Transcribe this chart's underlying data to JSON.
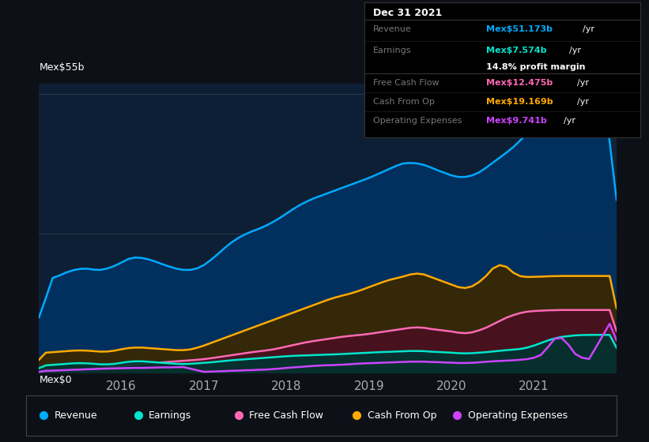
{
  "bg_color": "#0d1117",
  "plot_bg_color": "#0d1f35",
  "ylabel_top": "Mex$55b",
  "ylabel_bottom": "Mex$0",
  "xlabel_ticks": [
    "2016",
    "2017",
    "2018",
    "2019",
    "2020",
    "2021"
  ],
  "colors": {
    "revenue": "#00aaff",
    "earnings": "#00e5cc",
    "free_cash_flow": "#ff69b4",
    "cash_from_op": "#ffaa00",
    "operating_expenses": "#cc44ff"
  },
  "fill_colors": {
    "revenue": "#003366",
    "cash_from_op": "#3a2800",
    "free_cash_flow": "#4a1020",
    "earnings": "#003330"
  },
  "tooltip": {
    "title": "Dec 31 2021",
    "revenue_label": "Revenue",
    "revenue_value": "Mex$51.173b",
    "revenue_color": "#00aaff",
    "earnings_label": "Earnings",
    "earnings_value": "Mex$7.574b",
    "earnings_color": "#00e5cc",
    "profit_margin": "14.8% profit margin",
    "fcf_label": "Free Cash Flow",
    "fcf_value": "Mex$12.475b",
    "fcf_color": "#ff69b4",
    "cfop_label": "Cash From Op",
    "cfop_value": "Mex$19.169b",
    "cfop_color": "#ffaa00",
    "opex_label": "Operating Expenses",
    "opex_value": "Mex$9.741b",
    "opex_color": "#cc44ff"
  },
  "legend": [
    {
      "label": "Revenue",
      "color": "#00aaff"
    },
    {
      "label": "Earnings",
      "color": "#00e5cc"
    },
    {
      "label": "Free Cash Flow",
      "color": "#ff69b4"
    },
    {
      "label": "Cash From Op",
      "color": "#ffaa00"
    },
    {
      "label": "Operating Expenses",
      "color": "#cc44ff"
    }
  ],
  "ylim": [
    0,
    57
  ],
  "xlim_min": 0,
  "xlim_max": 84,
  "highlight_x_start": 72,
  "highlight_x_end": 84,
  "year_tick_positions": [
    12,
    24,
    36,
    48,
    60,
    72
  ],
  "n_points": 85
}
